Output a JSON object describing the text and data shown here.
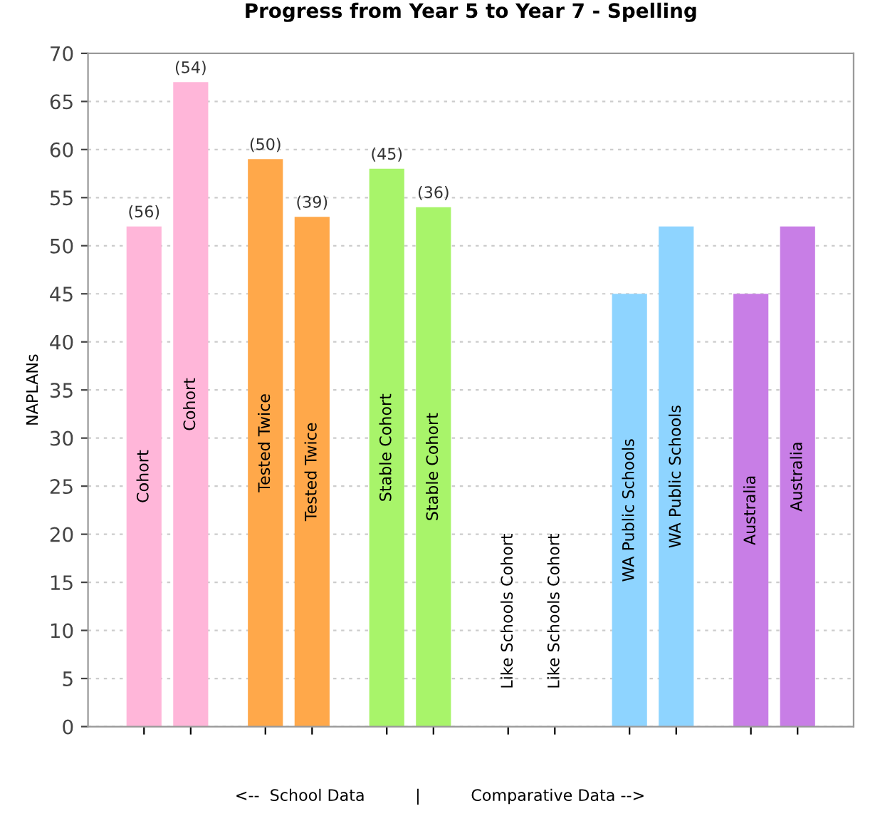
{
  "chart_data": {
    "type": "bar",
    "title": "Progress from Year 5 to Year 7 - Spelling",
    "ylabel": "NAPLANs",
    "categories": [
      "Cohort",
      "Cohort",
      "Tested Twice",
      "Tested Twice",
      "Stable Cohort",
      "Stable Cohort",
      "Like Schools Cohort",
      "Like Schools Cohort",
      "WA Public Schools",
      "WA Public Schools",
      "Australia",
      "Australia"
    ],
    "values": [
      52,
      67,
      59,
      53,
      58,
      54,
      null,
      null,
      45,
      52,
      45,
      52
    ],
    "colors": [
      "#ffb6d9",
      "#ffb6d9",
      "#ffa84a",
      "#ffa84a",
      "#a8f46a",
      "#a8f46a",
      "#cccccc",
      "#cccccc",
      "#8ed4ff",
      "#8ed4ff",
      "#c87ee6",
      "#c87ee6"
    ],
    "annotations": [
      "(56)",
      "(54)",
      "(50)",
      "(39)",
      "(45)",
      "(36)",
      "<--  School Data          |          Comparative Data -->"
    ],
    "ylim": [
      0,
      70
    ],
    "yticks": [
      0,
      5,
      10,
      15,
      20,
      25,
      30,
      35,
      40,
      45,
      50,
      55,
      60,
      65,
      70
    ],
    "grid": "y"
  }
}
